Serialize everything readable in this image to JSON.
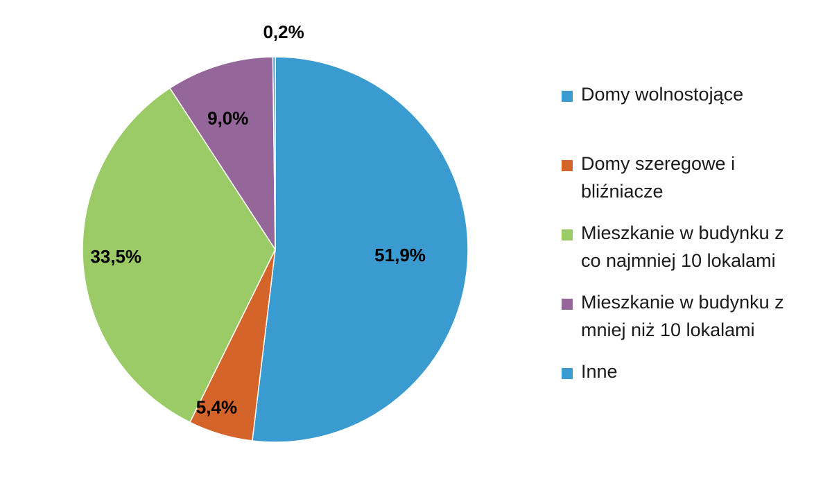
{
  "chart_data": {
    "type": "pie",
    "title": "",
    "start_angle_deg": 0,
    "direction": "clockwise",
    "legend_position": "right",
    "slices": [
      {
        "label": "Domy wolnostojące",
        "legend_lines": [
          "Domy wolnostojące"
        ],
        "value": 51.9,
        "value_label": "51,9%",
        "color": "#3A9BD0"
      },
      {
        "label": "Domy szeregowe i bliźniacze",
        "legend_lines": [
          "Domy szeregowe i",
          "bliźniacze"
        ],
        "value": 5.4,
        "value_label": "5,4%",
        "color": "#D4642A"
      },
      {
        "label": "Mieszkanie w budynku z co najmniej 10 lokalami",
        "legend_lines": [
          "Mieszkanie w budynku z",
          "co najmniej 10 lokalami"
        ],
        "value": 33.5,
        "value_label": "33,5%",
        "color": "#9BCB67"
      },
      {
        "label": "Mieszkanie w budynku z mniej niż 10 lokalami",
        "legend_lines": [
          "Mieszkanie w budynku z",
          "mniej niż 10 lokalami"
        ],
        "value": 9.0,
        "value_label": "9,0%",
        "color": "#956699"
      },
      {
        "label": "Inne",
        "legend_lines": [
          "Inne"
        ],
        "value": 0.2,
        "value_label": "0,2%",
        "color": "#3A9BD0"
      }
    ]
  }
}
